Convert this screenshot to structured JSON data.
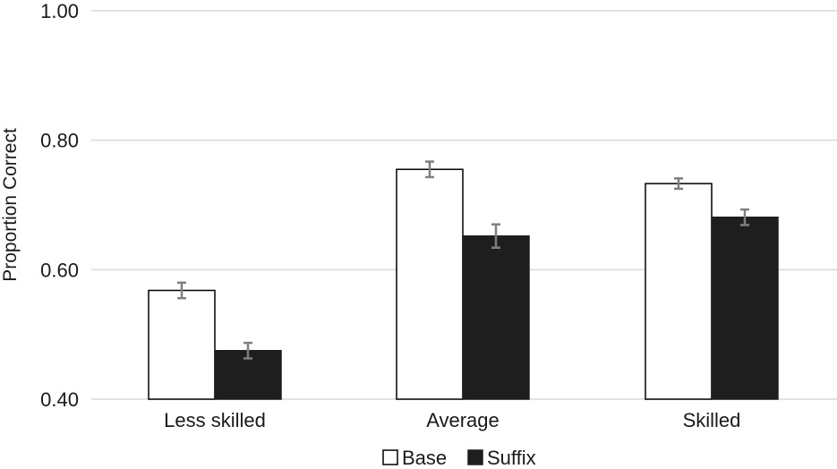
{
  "chart_data": {
    "type": "bar",
    "title": "",
    "xlabel": "",
    "ylabel": "Proportion Correct",
    "ylim": [
      0.4,
      1.0
    ],
    "yticks": [
      "0.40",
      "0.60",
      "0.80",
      "1.00"
    ],
    "ytick_values": [
      0.4,
      0.6,
      0.8,
      1.0
    ],
    "grid": true,
    "legend_position": "bottom",
    "categories": [
      "Less skilled",
      "Average",
      "Skilled"
    ],
    "series": [
      {
        "name": "Base",
        "fill": "#ffffff",
        "stroke": "#000000",
        "values": [
          0.568,
          0.755,
          0.733
        ],
        "error": [
          0.012,
          0.012,
          0.008
        ]
      },
      {
        "name": "Suffix",
        "fill": "#1e1e1e",
        "stroke": "#1e1e1e",
        "values": [
          0.475,
          0.652,
          0.681
        ],
        "error": [
          0.012,
          0.018,
          0.012
        ]
      }
    ],
    "colors": {
      "grid": "#d9d9d9",
      "error_bar": "#7f7f7f",
      "axis": "#d9d9d9"
    }
  }
}
